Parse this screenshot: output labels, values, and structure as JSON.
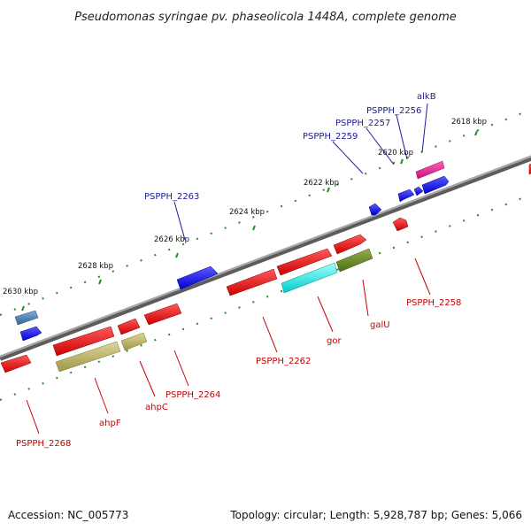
{
  "title": "Pseudomonas syringae pv. phaseolicola 1448A, complete genome",
  "footer": {
    "accession": "Accession: NC_005773",
    "summary": "Topology: circular; Length: 5,928,787 bp; Genes: 5,066"
  },
  "scale_labels": [
    "2618 kbp",
    "2620 kbp",
    "2622 kbp",
    "2624 kbp",
    "2626 kbp",
    "2628 kbp",
    "2630 kbp"
  ],
  "gene_labels_forward": [
    "alkB",
    "PSPPH_2256",
    "PSPPH_2257",
    "PSPPH_2259",
    "PSPPH_2263"
  ],
  "gene_labels_reverse": [
    "PSPPH_2258",
    "galU",
    "gor",
    "PSPPH_2262",
    "PSPPH_2264",
    "ahpC",
    "ahpF",
    "PSPPH_2268"
  ],
  "colors": {
    "backbone": "#808080",
    "forward_gene": "#0000ff",
    "reverse_gene": "#ff0000",
    "gor": "#00ffff",
    "galU": "#6b8e23",
    "ahp": "#bdb76b",
    "alkB": "#ff1493",
    "PSPPH_2268_forward": "#4682b4",
    "blue_label": "#1a1aa0",
    "red_label": "#c80000",
    "tick": "#228b22"
  }
}
